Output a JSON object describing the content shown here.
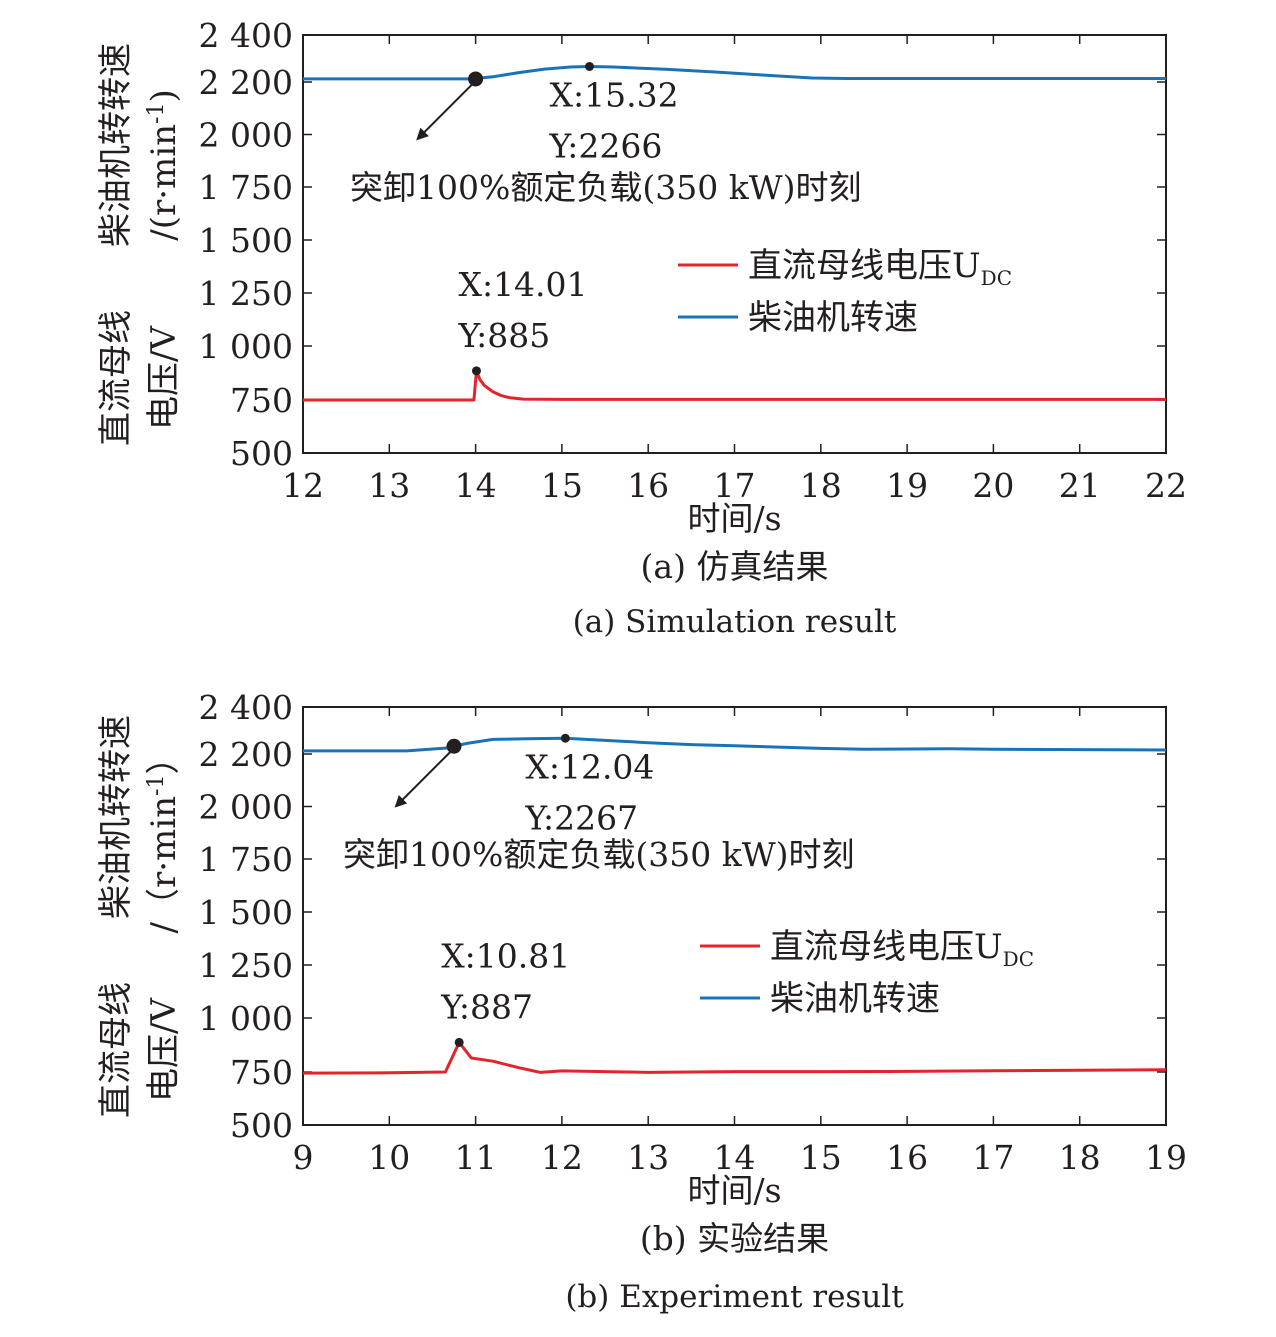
{
  "chart_data": [
    {
      "type": "line",
      "xlabel": "时间/s",
      "ylabel_lines": [
        "柴油机转转速",
        "/(r·min",
        "-1",
        ")",
        "直流母线",
        "电压/V"
      ],
      "caption_zh": "(a) 仿真结果",
      "caption_en": "(a) Simulation result",
      "xlim": [
        12,
        22
      ],
      "ylim": [
        500,
        2400
      ],
      "xticks": [
        12,
        13,
        14,
        15,
        16,
        17,
        18,
        19,
        20,
        21,
        22
      ],
      "xtick_labels": [
        "12",
        "13",
        "14",
        "15",
        "16",
        "17",
        "18",
        "19",
        "20",
        "21",
        "22"
      ],
      "yticks": [
        500,
        750,
        1000,
        1250,
        1500,
        1750,
        2000,
        2200,
        2400
      ],
      "ytick_labels": [
        "500",
        "750",
        "1 000",
        "1 250",
        "1 500",
        "1 750",
        "2 000",
        "2 200",
        "2 400"
      ],
      "legend": {
        "position": "right-middle",
        "entries": [
          "直流母线电压U",
          "柴油机转速"
        ],
        "subscript": "DC"
      },
      "series": [
        {
          "name": "直流母线电压U_DC",
          "color": "#e3242b",
          "points": [
            [
              12,
              750
            ],
            [
              13.98,
              750
            ],
            [
              14.01,
              885
            ],
            [
              14.05,
              845
            ],
            [
              14.1,
              818
            ],
            [
              14.2,
              788
            ],
            [
              14.3,
              770
            ],
            [
              14.4,
              760
            ],
            [
              14.55,
              754
            ],
            [
              15,
              753
            ],
            [
              22,
              753
            ]
          ]
        },
        {
          "name": "柴油机转速",
          "color": "#1a73b8",
          "points": [
            [
              12,
              2213
            ],
            [
              13.96,
              2213
            ],
            [
              14.2,
              2222
            ],
            [
              14.5,
              2240
            ],
            [
              14.8,
              2255
            ],
            [
              15.1,
              2264
            ],
            [
              15.32,
              2266
            ],
            [
              15.6,
              2264
            ],
            [
              16.2,
              2254
            ],
            [
              16.8,
              2242
            ],
            [
              17.3,
              2230
            ],
            [
              17.9,
              2217
            ],
            [
              18.3,
              2215
            ],
            [
              22,
              2215
            ]
          ]
        }
      ],
      "annotations": {
        "marker_a": {
          "x": 14.01,
          "y": 885,
          "text_x": "X:14.01",
          "text_y": "Y:885"
        },
        "marker_b": {
          "x": 15.32,
          "y": 2266,
          "text_x": "X:15.32",
          "text_y": "Y:2266"
        },
        "event_point": {
          "x": 14.0,
          "y": 2213
        },
        "event_text": "突卸100%额定负载(350 kW)时刻"
      }
    },
    {
      "type": "line",
      "xlabel": "时间/s",
      "ylabel_lines": [
        "柴油机转转速",
        "/（r·min",
        "-1",
        "）",
        "直流母线",
        "电压/V"
      ],
      "caption_zh": "(b) 实验结果",
      "caption_en": "(b) Experiment result",
      "xlim": [
        9,
        19
      ],
      "ylim": [
        500,
        2400
      ],
      "xticks": [
        9,
        10,
        11,
        12,
        13,
        14,
        15,
        16,
        17,
        18,
        19
      ],
      "xtick_labels": [
        "9",
        "10",
        "11",
        "12",
        "13",
        "14",
        "15",
        "16",
        "17",
        "18",
        "19"
      ],
      "yticks": [
        500,
        750,
        1000,
        1250,
        1500,
        1750,
        2000,
        2200,
        2400
      ],
      "ytick_labels": [
        "500",
        "750",
        "1 000",
        "1 250",
        "1 500",
        "1 750",
        "2 000",
        "2 200",
        "2 400"
      ],
      "legend": {
        "position": "right-middle",
        "entries": [
          "直流母线电压U",
          "柴油机转速"
        ],
        "subscript": "DC"
      },
      "series": [
        {
          "name": "直流母线电压U_DC",
          "color": "#e3242b",
          "points": [
            [
              9,
              745
            ],
            [
              10,
              746
            ],
            [
              10.65,
              750
            ],
            [
              10.81,
              887
            ],
            [
              10.95,
              815
            ],
            [
              11.2,
              800
            ],
            [
              11.5,
              770
            ],
            [
              11.75,
              748
            ],
            [
              12,
              755
            ],
            [
              12.5,
              752
            ],
            [
              13,
              748
            ],
            [
              14,
              752
            ],
            [
              15,
              752
            ],
            [
              16,
              753
            ],
            [
              17,
              756
            ],
            [
              18,
              758
            ],
            [
              19,
              760
            ]
          ]
        },
        {
          "name": "柴油机转速",
          "color": "#1a73b8",
          "points": [
            [
              9,
              2213
            ],
            [
              10.2,
              2213
            ],
            [
              10.65,
              2225
            ],
            [
              10.9,
              2245
            ],
            [
              11.2,
              2262
            ],
            [
              11.6,
              2265
            ],
            [
              12.04,
              2267
            ],
            [
              12.5,
              2258
            ],
            [
              13,
              2248
            ],
            [
              13.5,
              2240
            ],
            [
              14,
              2235
            ],
            [
              15,
              2224
            ],
            [
              15.5,
              2220
            ],
            [
              16.5,
              2222
            ],
            [
              17,
              2220
            ],
            [
              19,
              2217
            ]
          ]
        }
      ],
      "annotations": {
        "marker_a": {
          "x": 10.81,
          "y": 887,
          "text_x": "X:10.81",
          "text_y": "Y:887"
        },
        "marker_b": {
          "x": 12.04,
          "y": 2267,
          "text_x": "X:12.04",
          "text_y": "Y:2267"
        },
        "event_point": {
          "x": 10.75,
          "y": 2233
        },
        "event_text": "突卸100%额定负载(350 kW)时刻"
      }
    }
  ]
}
